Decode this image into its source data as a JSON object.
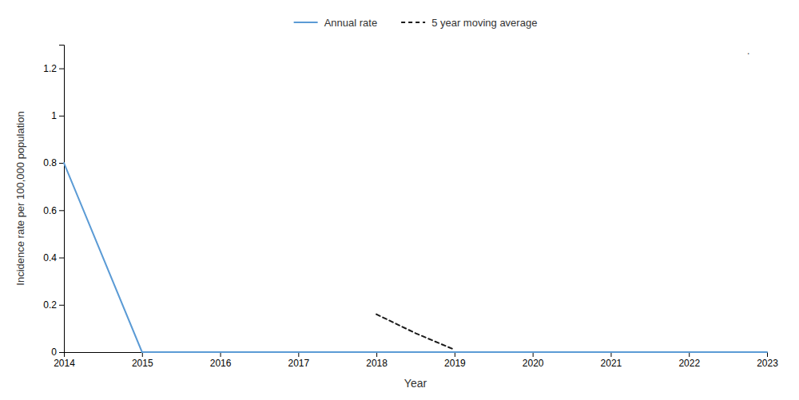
{
  "chart_data": {
    "type": "line",
    "xlabel": "Year",
    "ylabel": "Incidence rate per 100,000 population",
    "xlim": [
      2014,
      2023
    ],
    "xticks": [
      2014,
      2015,
      2016,
      2017,
      2018,
      2019,
      2020,
      2021,
      2022,
      2023
    ],
    "ylim": [
      0,
      1.3
    ],
    "yticks": [
      0,
      0.2,
      0.4,
      0.6,
      0.8,
      1,
      1.2
    ],
    "grid": false,
    "legend": "top",
    "annotation": ".",
    "series": [
      {
        "name": "Annual rate",
        "color": "#5B9BD5",
        "line_style": "solid",
        "x": [
          2014,
          2015,
          2016,
          2017,
          2018,
          2019,
          2020,
          2021,
          2022,
          2023
        ],
        "values": [
          0.8,
          0.0,
          0.0,
          0.0,
          0.0,
          0.0,
          0.0,
          0.0,
          0.0,
          0.0
        ]
      },
      {
        "name": "5 year moving average",
        "color": "#1a1a1a",
        "line_style": "dashed",
        "x": [
          2018,
          2018.5,
          2019
        ],
        "values": [
          0.16,
          0.08,
          0.01
        ]
      }
    ]
  }
}
